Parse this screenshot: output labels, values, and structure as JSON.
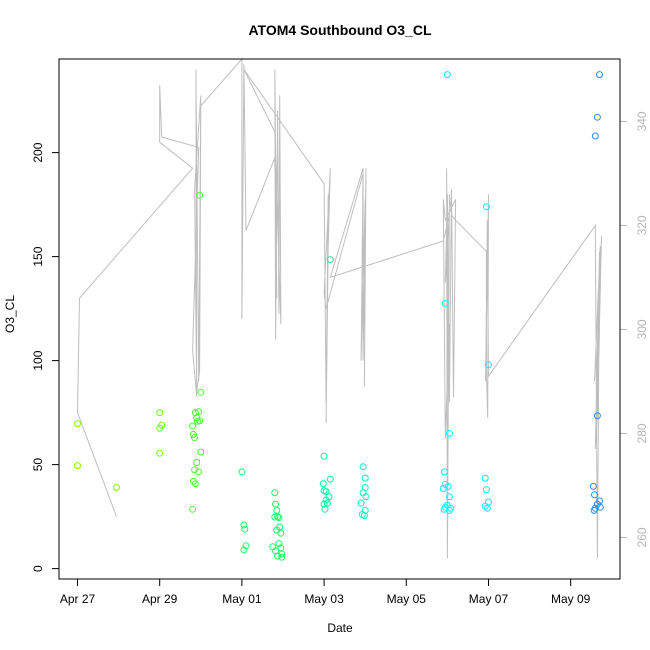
{
  "chart_data": {
    "type": "scatter",
    "title": "ATOM4 Southbound O3_CL",
    "xlabel": "Date",
    "ylabel": "O3_CL",
    "x_tick_labels": [
      "Apr 27",
      "Apr 29",
      "May 01",
      "May 03",
      "May 05",
      "May 07",
      "May 09"
    ],
    "x_ticks_day": [
      0,
      2,
      4,
      6,
      8,
      10,
      12
    ],
    "x_range_day": [
      -0.45,
      13.2
    ],
    "y_ticks": [
      0,
      50,
      100,
      150,
      200
    ],
    "y_range": [
      -5,
      245
    ],
    "y2_ticks": [
      260,
      280,
      300,
      320,
      340
    ],
    "y2_range": [
      252,
      352
    ],
    "grid": false,
    "legend": "none",
    "colors": {
      "track": "#bebebe",
      "right_axis": "#b5b5b5",
      "frame": "#000000"
    },
    "series": [
      {
        "values": [
          {
            "x": 0.0,
            "y": 69.7,
            "c": "#7fff00"
          },
          {
            "x": 0.0,
            "y": 49.5,
            "c": "#7fff00"
          },
          {
            "x": 0.95,
            "y": 39.0,
            "c": "#7fff00"
          },
          {
            "x": 2.0,
            "y": 75.0,
            "c": "#66ff19"
          },
          {
            "x": 2.05,
            "y": 69.0,
            "c": "#66ff19"
          },
          {
            "x": 2.0,
            "y": 67.5,
            "c": "#66ff19"
          },
          {
            "x": 2.0,
            "y": 55.5,
            "c": "#66ff19"
          },
          {
            "x": 2.8,
            "y": 28.5,
            "c": "#4dff33"
          },
          {
            "x": 2.8,
            "y": 68.5,
            "c": "#4dff33"
          },
          {
            "x": 2.82,
            "y": 64.5,
            "c": "#4dff33"
          },
          {
            "x": 2.85,
            "y": 63.0,
            "c": "#4dff33"
          },
          {
            "x": 2.87,
            "y": 75.0,
            "c": "#4dff33"
          },
          {
            "x": 2.9,
            "y": 72.5,
            "c": "#4dff33"
          },
          {
            "x": 2.92,
            "y": 70.8,
            "c": "#4dff33"
          },
          {
            "x": 2.95,
            "y": 75.5,
            "c": "#4dff33"
          },
          {
            "x": 2.97,
            "y": 71.0,
            "c": "#4dff33"
          },
          {
            "x": 2.85,
            "y": 47.5,
            "c": "#4dff33"
          },
          {
            "x": 2.9,
            "y": 51.0,
            "c": "#4dff33"
          },
          {
            "x": 2.95,
            "y": 46.5,
            "c": "#4dff33"
          },
          {
            "x": 2.82,
            "y": 42.0,
            "c": "#4dff33"
          },
          {
            "x": 2.87,
            "y": 40.8,
            "c": "#4dff33"
          },
          {
            "x": 3.0,
            "y": 56.0,
            "c": "#4dff33"
          },
          {
            "x": 3.0,
            "y": 84.8,
            "c": "#4dff33"
          },
          {
            "x": 2.97,
            "y": 179.5,
            "c": "#4dff33"
          },
          {
            "x": 4.0,
            "y": 46.5,
            "c": "#1aff66"
          },
          {
            "x": 4.05,
            "y": 21.0,
            "c": "#1aff66"
          },
          {
            "x": 4.07,
            "y": 19.0,
            "c": "#1aff66"
          },
          {
            "x": 4.1,
            "y": 11.0,
            "c": "#1aff66"
          },
          {
            "x": 4.05,
            "y": 9.0,
            "c": "#1aff66"
          },
          {
            "x": 4.8,
            "y": 36.5,
            "c": "#1aff66"
          },
          {
            "x": 4.82,
            "y": 31.0,
            "c": "#1aff66"
          },
          {
            "x": 4.85,
            "y": 28.0,
            "c": "#1aff66"
          },
          {
            "x": 4.87,
            "y": 25.0,
            "c": "#1aff66"
          },
          {
            "x": 4.8,
            "y": 24.8,
            "c": "#1aff66"
          },
          {
            "x": 4.9,
            "y": 24.5,
            "c": "#1aff66"
          },
          {
            "x": 4.92,
            "y": 20.0,
            "c": "#1aff66"
          },
          {
            "x": 4.95,
            "y": 17.0,
            "c": "#1aff66"
          },
          {
            "x": 4.85,
            "y": 18.5,
            "c": "#1aff66"
          },
          {
            "x": 4.9,
            "y": 12.0,
            "c": "#1aff66"
          },
          {
            "x": 4.95,
            "y": 10.0,
            "c": "#1aff66"
          },
          {
            "x": 4.82,
            "y": 8.5,
            "c": "#1aff66"
          },
          {
            "x": 4.87,
            "y": 6.0,
            "c": "#1aff66"
          },
          {
            "x": 4.97,
            "y": 7.0,
            "c": "#1aff66"
          },
          {
            "x": 4.75,
            "y": 10.5,
            "c": "#1aff66"
          },
          {
            "x": 4.97,
            "y": 5.5,
            "c": "#1aff66"
          },
          {
            "x": 6.0,
            "y": 54.0,
            "c": "#00ffa0"
          },
          {
            "x": 6.15,
            "y": 148.5,
            "c": "#00ffa0"
          },
          {
            "x": 5.98,
            "y": 40.8,
            "c": "#00ffa0"
          },
          {
            "x": 6.0,
            "y": 37.5,
            "c": "#00ffa0"
          },
          {
            "x": 6.05,
            "y": 37.0,
            "c": "#00ffa0"
          },
          {
            "x": 6.15,
            "y": 43.0,
            "c": "#00ffa0"
          },
          {
            "x": 6.05,
            "y": 33.0,
            "c": "#00ffa0"
          },
          {
            "x": 6.0,
            "y": 31.0,
            "c": "#00ffa0"
          },
          {
            "x": 6.08,
            "y": 31.5,
            "c": "#00ffa0"
          },
          {
            "x": 6.12,
            "y": 34.5,
            "c": "#00ffa0"
          },
          {
            "x": 6.02,
            "y": 28.5,
            "c": "#00ffa0"
          },
          {
            "x": 6.95,
            "y": 49.0,
            "c": "#00ffc0"
          },
          {
            "x": 7.0,
            "y": 43.5,
            "c": "#00ffc0"
          },
          {
            "x": 7.0,
            "y": 39.0,
            "c": "#00ffc0"
          },
          {
            "x": 6.95,
            "y": 36.5,
            "c": "#00ffc0"
          },
          {
            "x": 7.02,
            "y": 34.5,
            "c": "#00ffc0"
          },
          {
            "x": 6.9,
            "y": 31.5,
            "c": "#00ffc0"
          },
          {
            "x": 7.0,
            "y": 28.0,
            "c": "#00ffc0"
          },
          {
            "x": 6.93,
            "y": 26.0,
            "c": "#00ffc0"
          },
          {
            "x": 6.98,
            "y": 25.5,
            "c": "#00ffc0"
          },
          {
            "x": 9.0,
            "y": 237.5,
            "c": "#00ffff"
          },
          {
            "x": 8.95,
            "y": 127.5,
            "c": "#00ffff"
          },
          {
            "x": 9.05,
            "y": 65.0,
            "c": "#00ffff"
          },
          {
            "x": 8.93,
            "y": 46.5,
            "c": "#00ffff"
          },
          {
            "x": 8.95,
            "y": 40.5,
            "c": "#00ffff"
          },
          {
            "x": 9.02,
            "y": 39.5,
            "c": "#00ffff"
          },
          {
            "x": 8.9,
            "y": 38.5,
            "c": "#00ffff"
          },
          {
            "x": 9.05,
            "y": 34.5,
            "c": "#00ffff"
          },
          {
            "x": 9.0,
            "y": 30.5,
            "c": "#00ffff"
          },
          {
            "x": 8.95,
            "y": 29.5,
            "c": "#00ffff"
          },
          {
            "x": 9.08,
            "y": 29.0,
            "c": "#00ffff"
          },
          {
            "x": 8.92,
            "y": 28.5,
            "c": "#00ffff"
          },
          {
            "x": 9.05,
            "y": 28.0,
            "c": "#00ffff"
          },
          {
            "x": 9.95,
            "y": 174.0,
            "c": "#00ffff"
          },
          {
            "x": 10.0,
            "y": 98.0,
            "c": "#00ffff"
          },
          {
            "x": 9.92,
            "y": 43.5,
            "c": "#00ffff"
          },
          {
            "x": 9.95,
            "y": 38.0,
            "c": "#00ffff"
          },
          {
            "x": 10.0,
            "y": 32.0,
            "c": "#00ffff"
          },
          {
            "x": 9.92,
            "y": 30.0,
            "c": "#00ffff"
          },
          {
            "x": 9.97,
            "y": 29.0,
            "c": "#00ffff"
          },
          {
            "x": 12.7,
            "y": 237.5,
            "c": "#1e90ff"
          },
          {
            "x": 12.65,
            "y": 217.0,
            "c": "#1e90ff"
          },
          {
            "x": 12.6,
            "y": 208.0,
            "c": "#1e90ff"
          },
          {
            "x": 12.65,
            "y": 73.5,
            "c": "#1e90ff"
          },
          {
            "x": 12.55,
            "y": 39.5,
            "c": "#1e90ff"
          },
          {
            "x": 12.58,
            "y": 35.5,
            "c": "#1e90ff"
          },
          {
            "x": 12.7,
            "y": 32.5,
            "c": "#1e90ff"
          },
          {
            "x": 12.65,
            "y": 31.0,
            "c": "#1e90ff"
          },
          {
            "x": 12.6,
            "y": 29.0,
            "c": "#1e90ff"
          },
          {
            "x": 12.72,
            "y": 29.5,
            "c": "#1e90ff"
          },
          {
            "x": 12.57,
            "y": 28.0,
            "c": "#1e90ff"
          }
        ]
      }
    ],
    "track": [
      [
        0.95,
        264
      ],
      [
        0.0,
        284
      ],
      [
        0.05,
        306
      ],
      [
        2.8,
        331
      ],
      [
        2.0,
        336
      ],
      [
        2.0,
        347
      ],
      [
        2.05,
        337
      ],
      [
        2.95,
        335
      ],
      [
        2.8,
        296
      ],
      [
        2.9,
        287
      ],
      [
        2.88,
        350
      ],
      [
        2.95,
        290
      ],
      [
        3.0,
        345
      ],
      [
        2.85,
        327
      ],
      [
        2.9,
        288
      ],
      [
        2.97,
        292
      ],
      [
        3.0,
        343
      ],
      [
        4.0,
        352
      ],
      [
        4.0,
        302
      ],
      [
        4.05,
        351
      ],
      [
        4.1,
        319
      ],
      [
        4.8,
        333
      ],
      [
        4.85,
        306
      ],
      [
        4.8,
        350
      ],
      [
        4.82,
        298
      ],
      [
        4.87,
        342
      ],
      [
        4.9,
        303
      ],
      [
        4.92,
        345
      ],
      [
        4.95,
        301
      ],
      [
        4.8,
        338
      ],
      [
        4.05,
        350
      ],
      [
        6.0,
        328
      ],
      [
        6.05,
        286
      ],
      [
        6.1,
        326
      ],
      [
        6.05,
        282
      ],
      [
        6.1,
        316
      ],
      [
        6.15,
        331
      ],
      [
        6.0,
        307
      ],
      [
        6.05,
        304
      ],
      [
        6.95,
        330
      ],
      [
        6.95,
        294
      ],
      [
        7.02,
        331
      ],
      [
        6.98,
        289
      ],
      [
        7.0,
        325
      ],
      [
        6.9,
        294
      ],
      [
        6.95,
        331
      ],
      [
        6.15,
        310
      ],
      [
        8.9,
        317
      ],
      [
        9.05,
        322
      ],
      [
        8.95,
        309
      ],
      [
        9.0,
        326
      ],
      [
        9.05,
        286
      ],
      [
        9.1,
        327
      ],
      [
        9.15,
        287
      ],
      [
        9.2,
        325
      ],
      [
        8.95,
        321
      ],
      [
        8.9,
        325
      ],
      [
        8.95,
        279
      ],
      [
        9.05,
        301
      ],
      [
        9.02,
        286
      ],
      [
        8.98,
        331
      ],
      [
        9.0,
        256
      ],
      [
        9.05,
        326
      ],
      [
        9.1,
        322
      ],
      [
        9.2,
        321
      ],
      [
        9.95,
        315
      ],
      [
        9.95,
        292
      ],
      [
        9.98,
        283
      ],
      [
        10.0,
        326
      ],
      [
        9.93,
        290
      ],
      [
        9.97,
        321
      ],
      [
        10.0,
        291
      ],
      [
        12.6,
        320
      ],
      [
        12.65,
        256
      ],
      [
        12.7,
        315
      ],
      [
        12.6,
        277
      ],
      [
        12.75,
        318
      ],
      [
        12.65,
        283
      ],
      [
        12.7,
        300
      ],
      [
        12.62,
        278
      ],
      [
        12.72,
        316
      ],
      [
        12.58,
        290
      ]
    ]
  }
}
